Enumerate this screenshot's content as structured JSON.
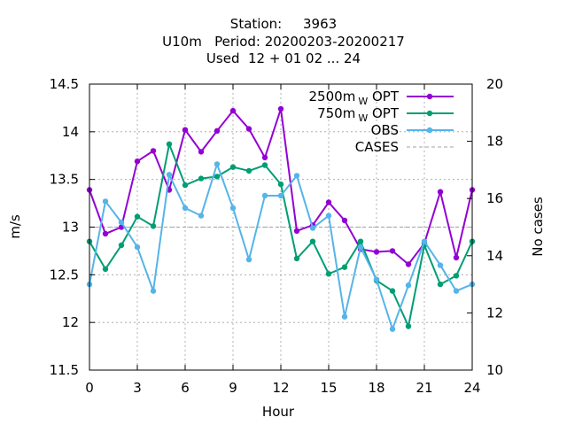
{
  "chart_data": {
    "type": "line",
    "title_lines": [
      "Station:     3963",
      "U10m   Period: 20200203-20200217",
      "Used  12 + 01 02 ... 24"
    ],
    "xlabel": "Hour",
    "ylabel": "m/s",
    "y2label": "No cases",
    "xlim": [
      0,
      24
    ],
    "ylim": [
      11.5,
      14.5
    ],
    "y2lim": [
      10,
      20
    ],
    "xticks": [
      0,
      3,
      6,
      9,
      12,
      15,
      18,
      21,
      24
    ],
    "yticks": [
      11.5,
      12,
      12.5,
      13,
      13.5,
      14,
      14.5
    ],
    "y2ticks": [
      10,
      12,
      14,
      16,
      18,
      20
    ],
    "grid": true,
    "legend_position": "top-right",
    "x": [
      0,
      1,
      2,
      3,
      4,
      5,
      6,
      7,
      8,
      9,
      10,
      11,
      12,
      13,
      14,
      15,
      16,
      17,
      18,
      19,
      20,
      21,
      22,
      23,
      24
    ],
    "series": [
      {
        "name": "2500m",
        "name_sub": "W",
        "name_suffix": " OPT",
        "color": "#9400d3",
        "values": [
          13.39,
          12.93,
          13.0,
          13.69,
          13.8,
          13.39,
          14.02,
          13.79,
          14.01,
          14.22,
          14.03,
          13.73,
          14.24,
          12.96,
          13.02,
          13.26,
          13.07,
          12.77,
          12.74,
          12.75,
          12.61,
          12.83,
          13.37,
          12.68,
          13.39
        ]
      },
      {
        "name": "750m",
        "name_sub": "W",
        "name_suffix": " OPT",
        "color": "#009e73",
        "values": [
          12.85,
          12.56,
          12.81,
          13.11,
          13.01,
          13.87,
          13.44,
          13.51,
          13.53,
          13.63,
          13.59,
          13.65,
          13.45,
          12.67,
          12.85,
          12.51,
          12.58,
          12.85,
          12.44,
          12.33,
          11.96,
          12.81,
          12.4,
          12.49,
          12.85
        ]
      },
      {
        "name": "OBS",
        "color": "#56b4e9",
        "values": [
          12.4,
          13.27,
          13.05,
          12.79,
          12.33,
          13.55,
          13.2,
          13.12,
          13.66,
          13.2,
          12.66,
          13.33,
          13.33,
          13.54,
          12.99,
          13.12,
          12.06,
          12.79,
          12.45,
          11.93,
          12.39,
          12.85,
          12.6,
          12.33,
          12.4
        ]
      },
      {
        "name": "CASES",
        "color": "#a0a0a0",
        "axis": "y2",
        "dash": true,
        "values": [
          15,
          15,
          15,
          15,
          15,
          15,
          15,
          15,
          15,
          15,
          15,
          15,
          15,
          15,
          15,
          15,
          15,
          15,
          15,
          15,
          15,
          15,
          15,
          15,
          15
        ]
      }
    ]
  }
}
